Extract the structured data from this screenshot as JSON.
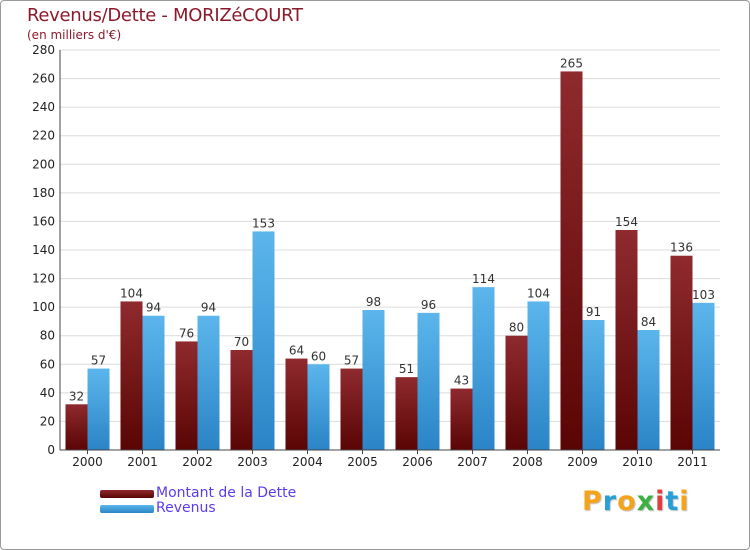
{
  "title": "Revenus/Dette - MORIZéCOURT",
  "subtitle": "(en milliers d'€)",
  "brand": {
    "letters": [
      {
        "ch": "P",
        "color": "#f5a31a"
      },
      {
        "ch": "r",
        "color": "#2a9fd6"
      },
      {
        "ch": "o",
        "color": "#f5a31a"
      },
      {
        "ch": "x",
        "color": "#3cb043"
      },
      {
        "ch": "i",
        "color": "#e23c3c"
      },
      {
        "ch": "t",
        "color": "#2a9fd6"
      },
      {
        "ch": "i",
        "color": "#f5a31a"
      }
    ]
  },
  "colors": {
    "dette": "#7a1010",
    "revenus": "#3a9ad9",
    "text_accent": "#8b1a2b"
  },
  "chart_data": {
    "type": "bar",
    "title": "Revenus/Dette - MORIZéCOURT",
    "ylabel": "(en milliers d'€)",
    "xlabel": "",
    "categories": [
      "2000",
      "2001",
      "2002",
      "2003",
      "2004",
      "2005",
      "2006",
      "2007",
      "2008",
      "2009",
      "2010",
      "2011"
    ],
    "series": [
      {
        "name": "Montant de la Dette",
        "color": "#7a1010",
        "values": [
          32,
          104,
          76,
          70,
          64,
          57,
          51,
          43,
          80,
          265,
          154,
          136
        ]
      },
      {
        "name": "Revenus",
        "color": "#3a9ad9",
        "values": [
          57,
          94,
          94,
          153,
          60,
          98,
          96,
          114,
          104,
          91,
          84,
          103
        ]
      }
    ],
    "ylim": [
      0,
      280
    ],
    "yticks": [
      0,
      20,
      40,
      60,
      80,
      100,
      120,
      140,
      160,
      180,
      200,
      220,
      240,
      260,
      280
    ],
    "grid": true,
    "legend": "bottom-left"
  }
}
